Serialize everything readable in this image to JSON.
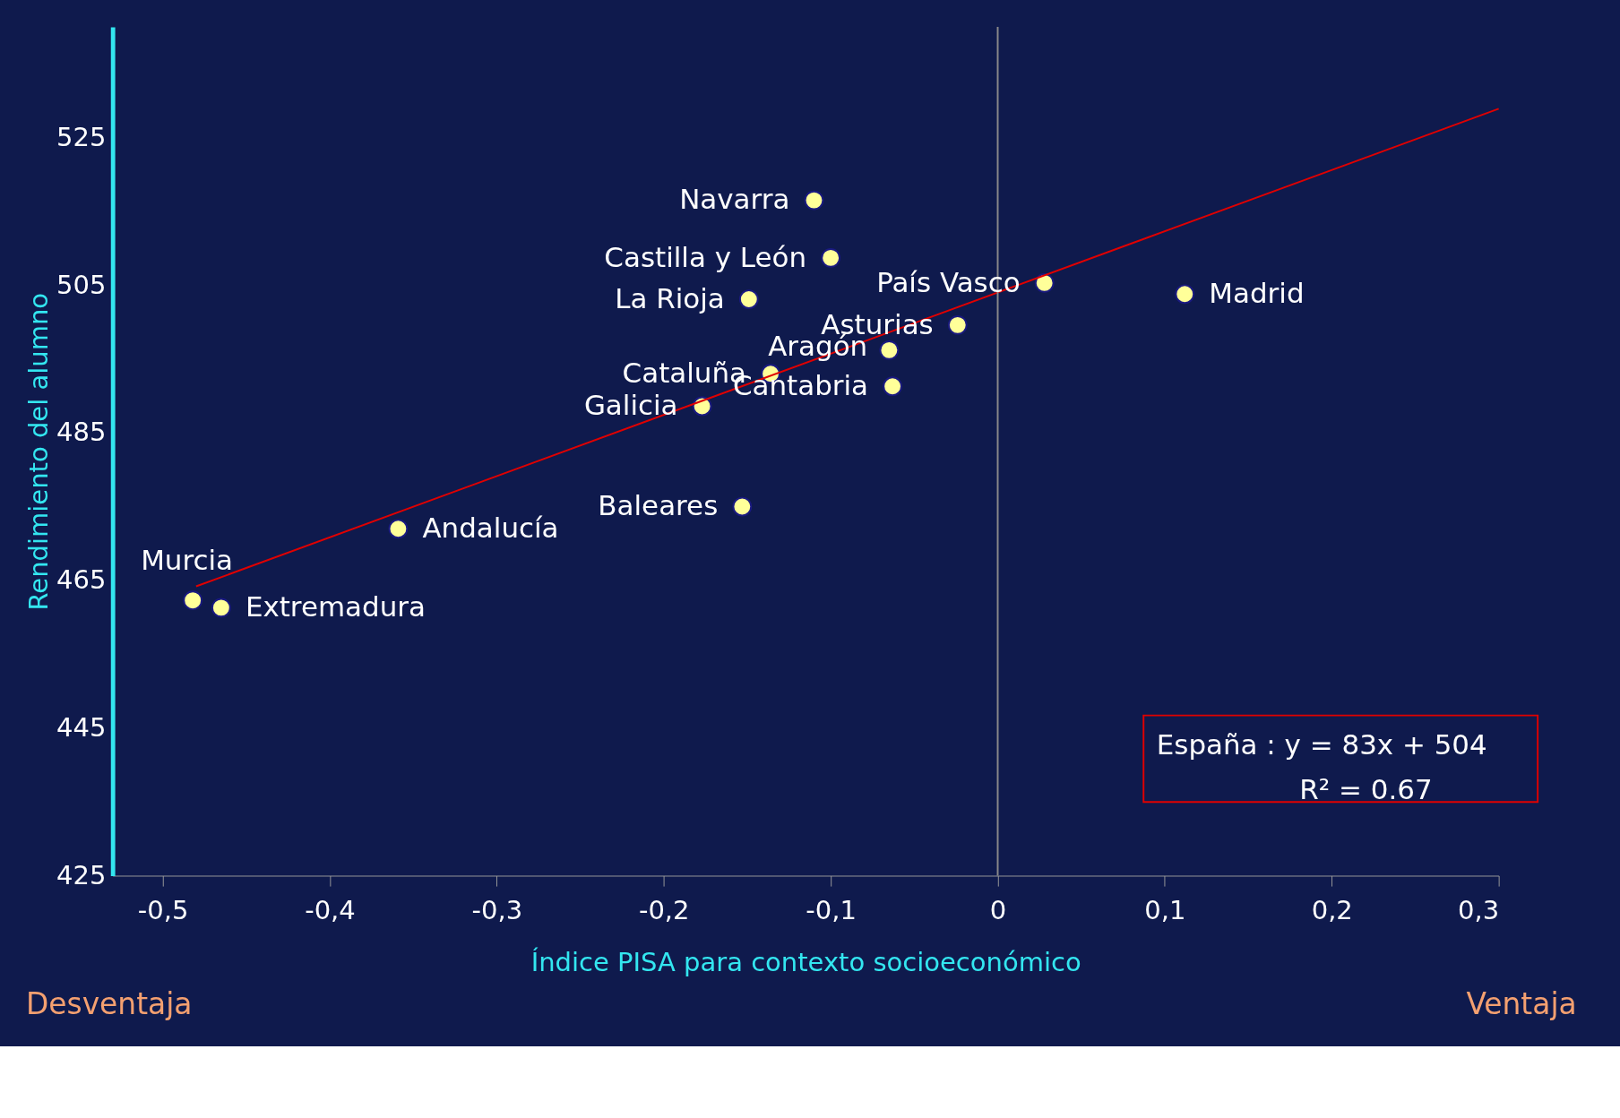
{
  "chart_data": {
    "type": "scatter",
    "xlabel": "Índice PISA para contexto socioeconómico",
    "ylabel": "Rendimiento del alumno",
    "xlim": [
      -0.53,
      0.3
    ],
    "ylim": [
      425,
      540
    ],
    "xticks": [
      {
        "value": -0.5,
        "label": "-0,5"
      },
      {
        "value": -0.4,
        "label": "-0,4"
      },
      {
        "value": -0.3,
        "label": "-0,3"
      },
      {
        "value": -0.2,
        "label": "-0,2"
      },
      {
        "value": -0.1,
        "label": "-0,1"
      },
      {
        "value": 0,
        "label": "0"
      },
      {
        "value": 0.1,
        "label": "0,1"
      },
      {
        "value": 0.2,
        "label": "0,2"
      },
      {
        "value": 0.3,
        "label": "0,3"
      }
    ],
    "yticks": [
      425,
      445,
      465,
      485,
      505,
      525
    ],
    "grid": false,
    "series": [
      {
        "type": "scatter",
        "marker": "circle",
        "color": "#ffff99",
        "x": [
          -0.11,
          -0.1,
          -0.149,
          0.028,
          0.112,
          -0.024,
          -0.065,
          -0.136,
          -0.063,
          -0.177,
          -0.153,
          -0.359,
          -0.482,
          -0.465
        ],
        "values": [
          516.5,
          508.7,
          503.1,
          505.3,
          503.8,
          499.6,
          496.2,
          493.0,
          491.3,
          488.6,
          475.0,
          472.0,
          462.3,
          461.3
        ]
      },
      {
        "type": "line",
        "marker": "none",
        "line_style": "solid",
        "color": "#e00000",
        "x": [
          -0.48,
          0.3
        ],
        "values": [
          464.2,
          528.9
        ]
      }
    ],
    "ref_lines": [
      {
        "axis": "x",
        "value": 0,
        "color": "#8a8a8a"
      }
    ],
    "annotations": [
      {
        "text": "Navarra",
        "x": -0.11,
        "y": 516.5
      },
      {
        "text": "Castilla y León",
        "x": -0.1,
        "y": 508.7
      },
      {
        "text": "La Rioja",
        "x": -0.149,
        "y": 503.1
      },
      {
        "text": "País Vasco",
        "x": 0.028,
        "y": 505.3
      },
      {
        "text": "Madrid",
        "x": 0.112,
        "y": 503.8
      },
      {
        "text": "Asturias",
        "x": -0.024,
        "y": 499.6
      },
      {
        "text": "Aragón",
        "x": -0.065,
        "y": 496.2
      },
      {
        "text": "Cataluña",
        "x": -0.136,
        "y": 493.0
      },
      {
        "text": "Cantabria",
        "x": -0.063,
        "y": 491.3
      },
      {
        "text": "Galicia",
        "x": -0.177,
        "y": 488.6
      },
      {
        "text": "Baleares",
        "x": -0.153,
        "y": 475.0
      },
      {
        "text": "Andalucía",
        "x": -0.359,
        "y": 472.0
      },
      {
        "text": "Murcia",
        "x": -0.482,
        "y": 462.3
      },
      {
        "text": "Extremadura",
        "x": -0.465,
        "y": 461.3
      },
      "Desventaja",
      "Ventaja",
      "España :  y = 83x + 504",
      "R² = 0.67"
    ]
  }
}
